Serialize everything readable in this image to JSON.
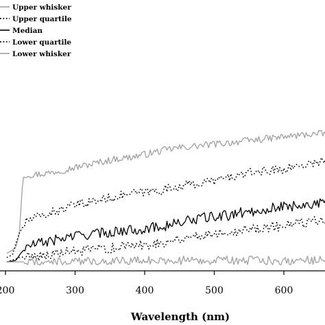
{
  "chart_data": {
    "type": "line",
    "xlabel": "Wavelength (nm)",
    "ylabel": "",
    "xlim": [
      200,
      665
    ],
    "ylim": [
      0,
      1
    ],
    "x_ticks": [
      200,
      300,
      400,
      500,
      600
    ],
    "x_tick_labels": [
      "200",
      "300",
      "400",
      "500",
      "600"
    ],
    "grid": false,
    "legend_position": "top-left",
    "series": [
      {
        "name": "Upper whisker",
        "style": "solid",
        "color": "#a0a0a0",
        "points": [
          [
            202,
            0.06
          ],
          [
            210,
            0.08
          ],
          [
            215,
            0.1
          ],
          [
            220,
            0.2
          ],
          [
            225,
            0.58
          ],
          [
            230,
            0.6
          ],
          [
            240,
            0.6
          ],
          [
            260,
            0.61
          ],
          [
            280,
            0.63
          ],
          [
            300,
            0.65
          ],
          [
            320,
            0.67
          ],
          [
            340,
            0.69
          ],
          [
            360,
            0.71
          ],
          [
            380,
            0.72
          ],
          [
            400,
            0.74
          ],
          [
            420,
            0.76
          ],
          [
            440,
            0.78
          ],
          [
            460,
            0.79
          ],
          [
            480,
            0.8
          ],
          [
            500,
            0.81
          ],
          [
            520,
            0.82
          ],
          [
            540,
            0.83
          ],
          [
            560,
            0.84
          ],
          [
            580,
            0.85
          ],
          [
            600,
            0.86
          ],
          [
            620,
            0.87
          ],
          [
            640,
            0.88
          ],
          [
            660,
            0.88
          ]
        ],
        "noise": 0.008
      },
      {
        "name": "Upper quartile",
        "style": "dotted",
        "color": "#000000",
        "points": [
          [
            202,
            0.03
          ],
          [
            210,
            0.05
          ],
          [
            220,
            0.2
          ],
          [
            230,
            0.28
          ],
          [
            240,
            0.3
          ],
          [
            260,
            0.33
          ],
          [
            280,
            0.36
          ],
          [
            300,
            0.39
          ],
          [
            320,
            0.41
          ],
          [
            340,
            0.43
          ],
          [
            360,
            0.45
          ],
          [
            380,
            0.47
          ],
          [
            400,
            0.48
          ],
          [
            420,
            0.49
          ],
          [
            440,
            0.51
          ],
          [
            460,
            0.53
          ],
          [
            480,
            0.54
          ],
          [
            500,
            0.56
          ],
          [
            520,
            0.58
          ],
          [
            540,
            0.6
          ],
          [
            560,
            0.62
          ],
          [
            580,
            0.63
          ],
          [
            600,
            0.64
          ],
          [
            620,
            0.66
          ],
          [
            640,
            0.68
          ],
          [
            660,
            0.7
          ]
        ],
        "noise": 0.01
      },
      {
        "name": "Median",
        "style": "solid",
        "color": "#000000",
        "points": [
          [
            202,
            0.0
          ],
          [
            215,
            0.01
          ],
          [
            222,
            0.06
          ],
          [
            230,
            0.1
          ],
          [
            240,
            0.12
          ],
          [
            260,
            0.14
          ],
          [
            280,
            0.16
          ],
          [
            300,
            0.18
          ],
          [
            320,
            0.19
          ],
          [
            340,
            0.2
          ],
          [
            360,
            0.21
          ],
          [
            380,
            0.22
          ],
          [
            400,
            0.23
          ],
          [
            420,
            0.24
          ],
          [
            440,
            0.26
          ],
          [
            460,
            0.28
          ],
          [
            480,
            0.3
          ],
          [
            500,
            0.31
          ],
          [
            520,
            0.32
          ],
          [
            540,
            0.34
          ],
          [
            560,
            0.35
          ],
          [
            580,
            0.37
          ],
          [
            600,
            0.38
          ],
          [
            620,
            0.39
          ],
          [
            640,
            0.4
          ],
          [
            660,
            0.4
          ]
        ],
        "noise": 0.012
      },
      {
        "name": "Lower quartile",
        "style": "dotted",
        "color": "#000000",
        "points": [
          [
            202,
            0.0
          ],
          [
            220,
            0.03
          ],
          [
            240,
            0.04
          ],
          [
            260,
            0.05
          ],
          [
            280,
            0.06
          ],
          [
            300,
            0.07
          ],
          [
            320,
            0.08
          ],
          [
            340,
            0.09
          ],
          [
            360,
            0.1
          ],
          [
            380,
            0.11
          ],
          [
            400,
            0.12
          ],
          [
            420,
            0.13
          ],
          [
            440,
            0.15
          ],
          [
            460,
            0.17
          ],
          [
            480,
            0.18
          ],
          [
            500,
            0.2
          ],
          [
            520,
            0.21
          ],
          [
            540,
            0.22
          ],
          [
            560,
            0.23
          ],
          [
            580,
            0.24
          ],
          [
            600,
            0.25
          ],
          [
            620,
            0.26
          ],
          [
            640,
            0.28
          ],
          [
            660,
            0.3
          ]
        ],
        "noise": 0.012
      },
      {
        "name": "Lower whisker",
        "style": "solid",
        "color": "#a0a0a0",
        "points": [
          [
            202,
            0.0
          ],
          [
            260,
            0.0
          ],
          [
            300,
            0.0
          ],
          [
            360,
            0.01
          ],
          [
            400,
            0.01
          ],
          [
            460,
            0.01
          ],
          [
            500,
            0.01
          ],
          [
            560,
            0.01
          ],
          [
            600,
            0.01
          ],
          [
            660,
            0.01
          ]
        ],
        "noise": 0.01
      }
    ]
  }
}
